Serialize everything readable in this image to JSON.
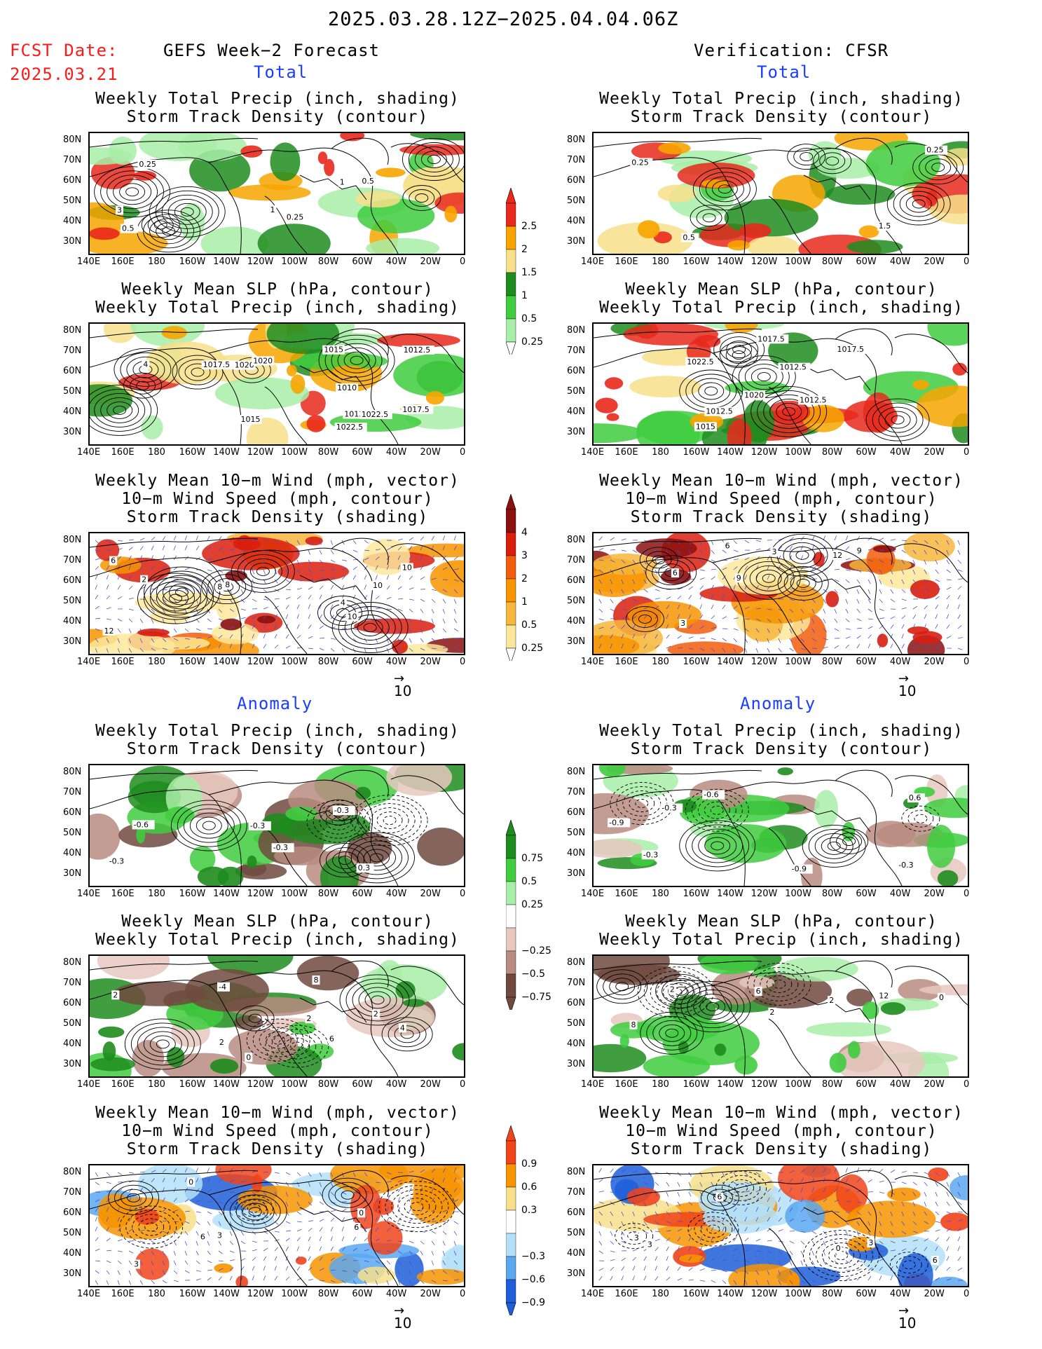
{
  "header": {
    "date_range": "2025.03.28.12Z−2025.04.04.06Z",
    "fcst_label": "FCST Date:",
    "fcst_date": "2025.03.21",
    "left_title": "GEFS Week−2 Forecast",
    "right_title": "Verification: CFSR",
    "section_total": "Total",
    "section_anomaly": "Anomaly"
  },
  "panel_titles": {
    "precip_storm": "Weekly Total Precip (inch, shading)\nStorm Track Density (contour)",
    "slp_precip": "Weekly Mean SLP (hPa, contour)\nWeekly Total Precip (inch, shading)",
    "wind_storm": "Weekly Mean 10−m Wind (mph, vector)\n10−m Wind Speed (mph, contour)\nStorm Track Density (shading)"
  },
  "axes": {
    "lat_labels": [
      "80N",
      "70N",
      "60N",
      "50N",
      "40N",
      "30N"
    ],
    "lon_labels": [
      "140E",
      "160E",
      "180",
      "160W",
      "140W",
      "120W",
      "100W",
      "80W",
      "60W",
      "40W",
      "20W",
      "0"
    ]
  },
  "vector_ref": "10",
  "colorbars": {
    "precip_total": {
      "labels": [
        "2.5",
        "2",
        "1.5",
        "1",
        "0.5",
        "0.25"
      ],
      "colors": [
        "#e8291c",
        "#f7a400",
        "#f7e08a",
        "#1e8c1e",
        "#3fcc3f",
        "#a8eda8"
      ]
    },
    "storm_total": {
      "labels": [
        "4",
        "3",
        "2",
        "1",
        "0.5",
        "0.25"
      ],
      "colors": [
        "#8b1010",
        "#d91e0e",
        "#f25d0c",
        "#f79400",
        "#f7b63c",
        "#fbe79a"
      ]
    },
    "precip_anom": {
      "labels": [
        "0.75",
        "0.5",
        "0.25",
        "−0.25",
        "−0.5",
        "−0.75"
      ],
      "colors": [
        "#1e8c1e",
        "#3fcc3f",
        "#a8eda8",
        "#ffffff",
        "#e6c8be",
        "#b88c80",
        "#704a3e"
      ]
    },
    "storm_anom": {
      "labels": [
        "0.9",
        "0.6",
        "0.3",
        "−0.3",
        "−0.6",
        "−0.9"
      ],
      "colors": [
        "#f0441a",
        "#f79400",
        "#f7e08a",
        "#ffffff",
        "#b4e0f7",
        "#5aa8f0",
        "#1e5fd9"
      ]
    }
  },
  "panels": [
    {
      "id": "L1",
      "kind": "precip",
      "contours": [
        "1",
        "0.25",
        "0.25",
        "0.5",
        "3",
        "0.5",
        "1"
      ]
    },
    {
      "id": "L2",
      "kind": "precip",
      "contours": [
        "1015",
        "1012",
        "1022.5",
        "1020",
        "1010",
        "1017.5",
        "1022.5",
        "1020",
        "1012.5",
        "1015",
        "1017.5",
        "4"
      ]
    },
    {
      "id": "L3",
      "kind": "storm",
      "contours": [
        "2",
        "8",
        "12",
        "10",
        "8",
        "6",
        "10",
        "4",
        "10"
      ]
    },
    {
      "id": "R1",
      "kind": "precip",
      "contours": [
        "1.5",
        "0.25",
        "0.5",
        "0.25"
      ]
    },
    {
      "id": "R2",
      "kind": "precip",
      "contours": [
        "1012.5",
        "1012.5",
        "1017.5",
        "1020",
        "1017.5",
        "1015",
        "1012.5",
        "1022.5"
      ]
    },
    {
      "id": "R3",
      "kind": "storm",
      "contours": [
        "3",
        "6",
        "12",
        "9",
        "6",
        "9",
        "3"
      ]
    },
    {
      "id": "L4",
      "kind": "precip_anom",
      "contours": [
        "-0.6",
        "-0.3",
        "-0.3",
        "-0.3",
        "0.3",
        "-0.3"
      ]
    },
    {
      "id": "L5",
      "kind": "precip_anom",
      "contours": [
        "0",
        "6",
        "8",
        "4",
        "2",
        "2",
        "-4",
        "2",
        "2"
      ]
    },
    {
      "id": "L6",
      "kind": "storm_anom",
      "contours": [
        "0",
        "3",
        "6",
        "3",
        "6",
        "0"
      ]
    },
    {
      "id": "R4",
      "kind": "precip_anom",
      "contours": [
        "-0.3",
        "-0.9",
        "-0.3",
        "-0.6",
        "-0.9",
        "-0.3",
        "0.6"
      ]
    },
    {
      "id": "R5",
      "kind": "precip_anom",
      "contours": [
        "6",
        "2",
        "0",
        "2",
        "12",
        "8",
        "2"
      ]
    },
    {
      "id": "R6",
      "kind": "storm_anom",
      "contours": [
        "3",
        "6",
        "3",
        "0",
        "3",
        "6"
      ]
    }
  ]
}
